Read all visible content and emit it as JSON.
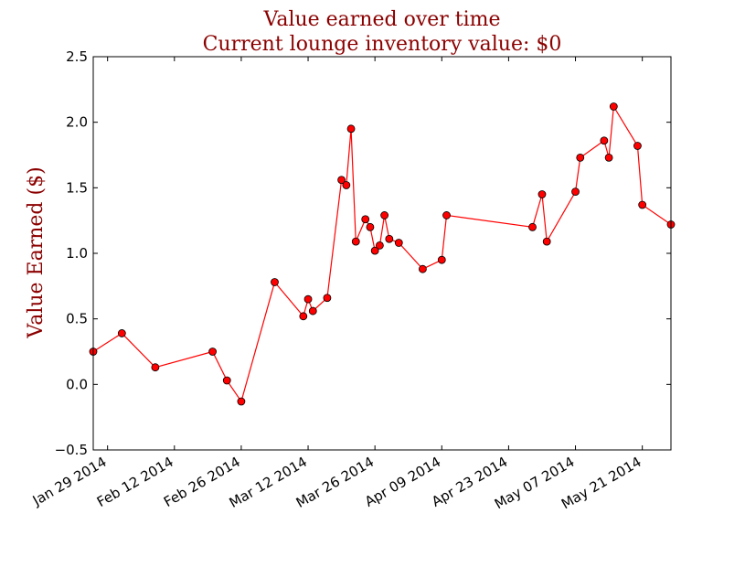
{
  "chart_data": {
    "type": "line",
    "title": "Value earned over time",
    "subtitle": "Current lounge inventory value: $0",
    "xlabel": "",
    "ylabel": "Value Earned ($)",
    "title_color": "#8b0000",
    "series_color": "#ff0000",
    "marker_color": "#ff0000",
    "grid": false,
    "xlim": [
      "2014-01-26",
      "2014-05-27"
    ],
    "ylim": [
      -0.5,
      2.5
    ],
    "y_ticks": [
      -0.5,
      0.0,
      0.5,
      1.0,
      1.5,
      2.0,
      2.5
    ],
    "y_tick_labels": [
      "−0.5",
      "0.0",
      "0.5",
      "1.0",
      "1.5",
      "2.0",
      "2.5"
    ],
    "x_ticks": [
      "2014-01-29",
      "2014-02-12",
      "2014-02-26",
      "2014-03-12",
      "2014-03-26",
      "2014-04-09",
      "2014-04-23",
      "2014-05-07",
      "2014-05-21"
    ],
    "x_tick_labels": [
      "Jan 29 2014",
      "Feb 12 2014",
      "Feb 26 2014",
      "Mar 12 2014",
      "Mar 26 2014",
      "Apr 09 2014",
      "Apr 23 2014",
      "May 07 2014",
      "May 21 2014"
    ],
    "series": [
      {
        "points": [
          {
            "x": "2014-01-26",
            "y": 0.25
          },
          {
            "x": "2014-02-01",
            "y": 0.39
          },
          {
            "x": "2014-02-08",
            "y": 0.13
          },
          {
            "x": "2014-02-20",
            "y": 0.25
          },
          {
            "x": "2014-02-23",
            "y": 0.03
          },
          {
            "x": "2014-02-26",
            "y": -0.13
          },
          {
            "x": "2014-03-05",
            "y": 0.78
          },
          {
            "x": "2014-03-11",
            "y": 0.52
          },
          {
            "x": "2014-03-12",
            "y": 0.65
          },
          {
            "x": "2014-03-13",
            "y": 0.56
          },
          {
            "x": "2014-03-16",
            "y": 0.66
          },
          {
            "x": "2014-03-19",
            "y": 1.56
          },
          {
            "x": "2014-03-20",
            "y": 1.52
          },
          {
            "x": "2014-03-21",
            "y": 1.95
          },
          {
            "x": "2014-03-22",
            "y": 1.09
          },
          {
            "x": "2014-03-24",
            "y": 1.26
          },
          {
            "x": "2014-03-25",
            "y": 1.2
          },
          {
            "x": "2014-03-26",
            "y": 1.02
          },
          {
            "x": "2014-03-27",
            "y": 1.06
          },
          {
            "x": "2014-03-28",
            "y": 1.29
          },
          {
            "x": "2014-03-29",
            "y": 1.11
          },
          {
            "x": "2014-03-31",
            "y": 1.08
          },
          {
            "x": "2014-04-05",
            "y": 0.88
          },
          {
            "x": "2014-04-09",
            "y": 0.95
          },
          {
            "x": "2014-04-10",
            "y": 1.29
          },
          {
            "x": "2014-04-28",
            "y": 1.2
          },
          {
            "x": "2014-04-30",
            "y": 1.45
          },
          {
            "x": "2014-05-01",
            "y": 1.09
          },
          {
            "x": "2014-05-07",
            "y": 1.47
          },
          {
            "x": "2014-05-08",
            "y": 1.73
          },
          {
            "x": "2014-05-13",
            "y": 1.86
          },
          {
            "x": "2014-05-14",
            "y": 1.73
          },
          {
            "x": "2014-05-15",
            "y": 2.12
          },
          {
            "x": "2014-05-20",
            "y": 1.82
          },
          {
            "x": "2014-05-21",
            "y": 1.37
          },
          {
            "x": "2014-05-27",
            "y": 1.22
          }
        ]
      }
    ]
  }
}
